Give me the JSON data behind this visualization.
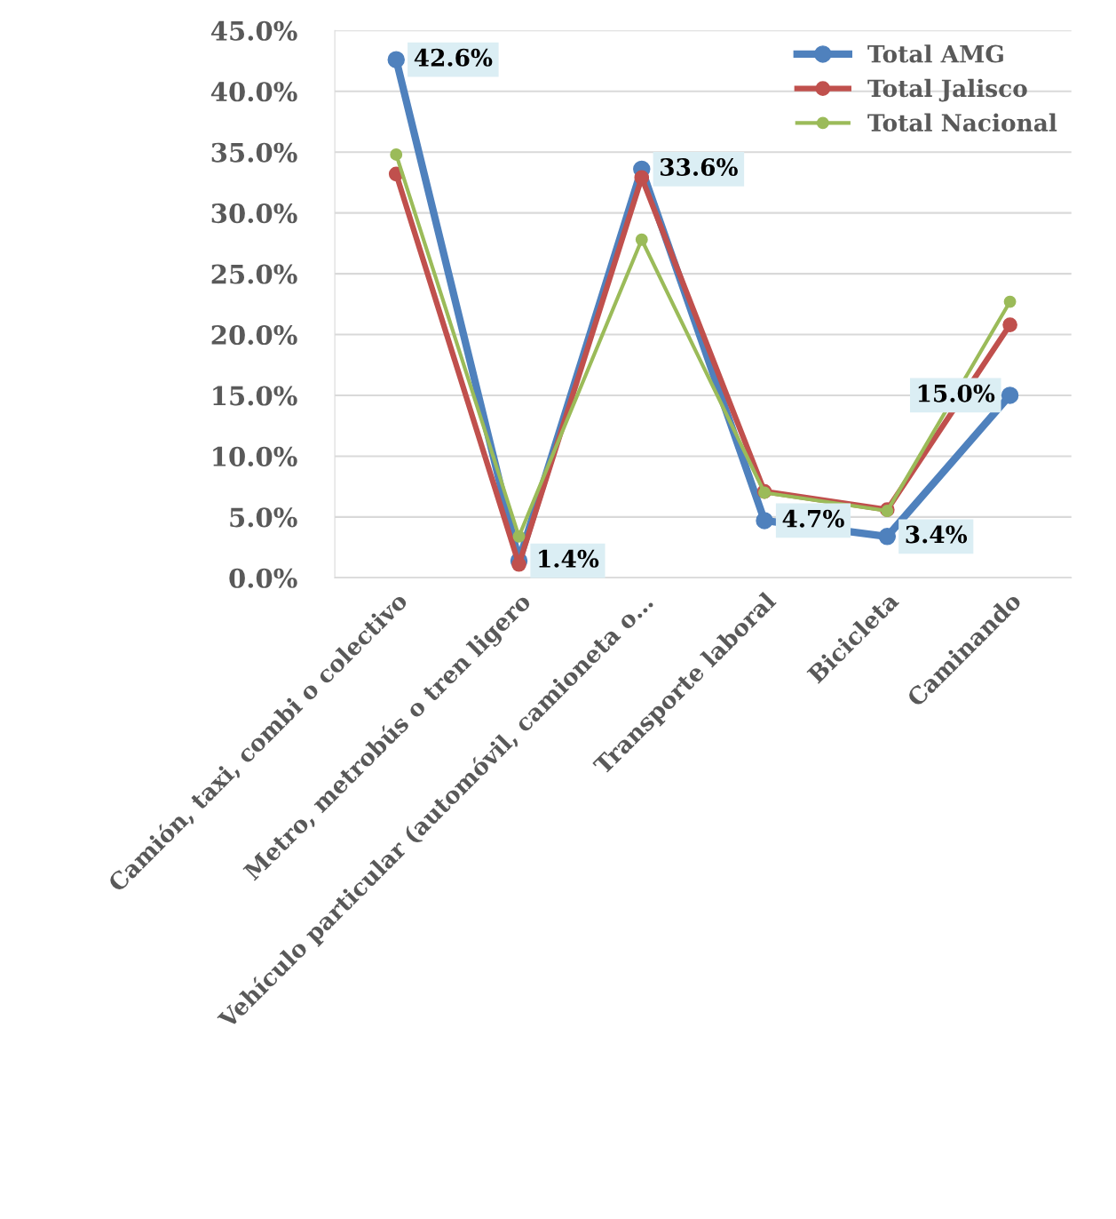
{
  "chart_data": {
    "type": "line",
    "categories": [
      "Camión, taxi, combi o colectivo",
      "Metro, metrobús o tren ligero",
      "Vehículo particular (automóvil, camioneta o…",
      "Transporte laboral",
      "Bicicleta",
      "Caminando"
    ],
    "series": [
      {
        "name": "Total AMG",
        "color": "#4f81bd",
        "values": [
          42.6,
          1.4,
          33.6,
          4.7,
          3.4,
          15.0
        ],
        "value_labels": [
          "42.6%",
          "1.4%",
          "33.6%",
          "4.7%",
          "3.4%",
          "15.0%"
        ]
      },
      {
        "name": "Total Jalisco",
        "color": "#c0504d",
        "values": [
          33.2,
          1.1,
          32.9,
          7.1,
          5.6,
          20.8
        ]
      },
      {
        "name": "Total Nacional",
        "color": "#9bbb59",
        "values": [
          34.8,
          3.4,
          27.8,
          7.0,
          5.5,
          22.7
        ]
      }
    ],
    "ylim": [
      0,
      45
    ],
    "yticks": [
      {
        "value": 0,
        "label": "0.0%"
      },
      {
        "value": 5,
        "label": "5.0%"
      },
      {
        "value": 10,
        "label": "10.0%"
      },
      {
        "value": 15,
        "label": "15.0%"
      },
      {
        "value": 20,
        "label": "20.0%"
      },
      {
        "value": 25,
        "label": "25.0%"
      },
      {
        "value": 30,
        "label": "30.0%"
      },
      {
        "value": 35,
        "label": "35.0%"
      },
      {
        "value": 40,
        "label": "40.0%"
      },
      {
        "value": 45,
        "label": "45.0%"
      }
    ],
    "grid": "y",
    "legend": "top right",
    "marker": "circle",
    "line_style": "solid"
  }
}
